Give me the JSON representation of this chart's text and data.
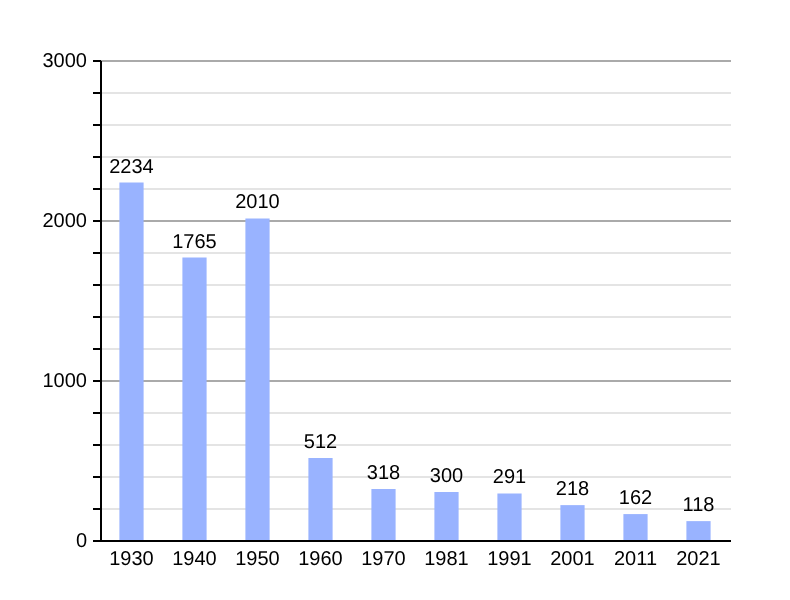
{
  "chart_data": {
    "type": "bar",
    "categories": [
      "1930",
      "1940",
      "1950",
      "1960",
      "1970",
      "1981",
      "1991",
      "2001",
      "2011",
      "2021"
    ],
    "values": [
      2234,
      1765,
      2010,
      512,
      318,
      300,
      291,
      218,
      162,
      118
    ],
    "color": "#99b3ff",
    "ylim": [
      0,
      3000
    ],
    "yticks": [
      0,
      {
        "value": 200,
        "label": null
      },
      {
        "value": 400,
        "label": null
      },
      {
        "value": 600,
        "label": null
      },
      {
        "value": 800,
        "label": null
      },
      1000,
      {
        "value": 1200,
        "label": null
      },
      {
        "value": 1400,
        "label": null
      },
      {
        "value": 1600,
        "label": null
      },
      {
        "value": 1800,
        "label": null
      },
      2000,
      {
        "value": 2200,
        "label": null
      },
      {
        "value": 2400,
        "label": null
      },
      {
        "value": 2600,
        "label": null
      },
      {
        "value": 2800,
        "label": null
      },
      3000
    ],
    "grid": true,
    "data_labels": true
  }
}
